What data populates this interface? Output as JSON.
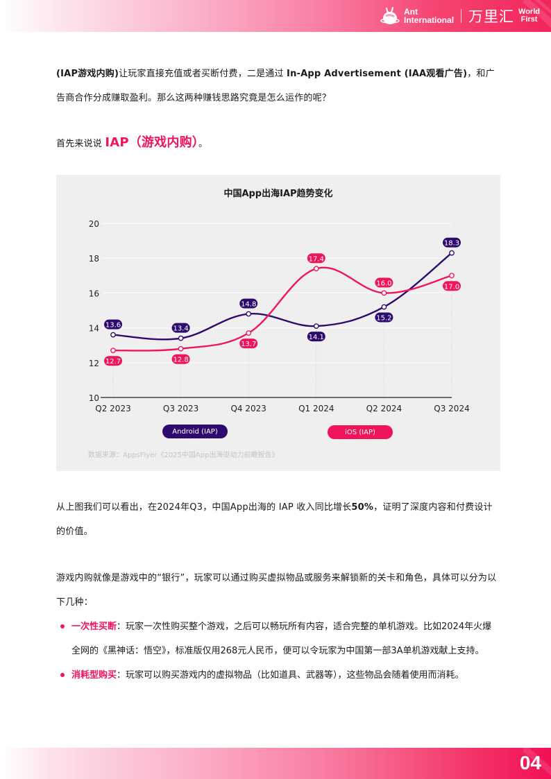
{
  "header": {
    "brand_ant_line1": "Ant",
    "brand_ant_line2": "International",
    "brand_cn": "万里汇",
    "brand_wf_line1": "World",
    "brand_wf_line2": "First",
    "logo_icon": "ant-mascot-icon"
  },
  "paragraphs": {
    "p1_bold_start": "(IAP游戏内购)",
    "p1_text_a": "让玩家直接充值或者买断付费，二是通过 ",
    "p1_bold_mid": "In-App Advertisement (IAA观看广告)",
    "p1_text_b": "，和广告商合作分成赚取盈利。那么这两种赚钱思路究竟是怎么运作的呢？",
    "p2_text": "首先来说说 ",
    "p2_highlight": "IAP（游戏内购）",
    "p2_end": "。",
    "p3_text_a": "从上图我们可以看出，在2024年Q3，中国App出海的 IAP 收入同比增长",
    "p3_bold": "50%",
    "p3_text_b": "，证明了深度内容和付费设计的价值。",
    "p4_text": "游戏内购就像是游戏中的“银行”，玩家可以通过购买虚拟物品或服务来解锁新的关卡和角色，具体可以分为以下几种："
  },
  "bullets": [
    {
      "term": "一次性买断",
      "text": "：玩家一次性购买整个游戏，之后可以畅玩所有内容，适合完整的单机游戏。比如2024年火爆全网的《黑神话：悟空》，标准版仅用268元人民币，便可以令玩家为中国第一部3A单机游戏献上支持。"
    },
    {
      "term": "消耗型购买",
      "text": "：玩家可以购买游戏内的虚拟物品（比如道具、武器等），这些物品会随着使用而消耗。"
    }
  ],
  "chart": {
    "source": "数据来源：AppsFlyer《2025中国App出海驱动力前瞻报告》"
  },
  "chart_data": {
    "type": "line",
    "title": "中国App出海IAP趋势变化",
    "categories": [
      "Q2 2023",
      "Q3 2023",
      "Q4 2023",
      "Q1 2024",
      "Q2 2024",
      "Q3 2024"
    ],
    "series": [
      {
        "name": "Android (IAP)",
        "color": "#2e0a6e",
        "values": [
          13.6,
          13.4,
          14.8,
          14.1,
          15.2,
          18.3
        ]
      },
      {
        "name": "iOS (IAP)",
        "color": "#f0145a",
        "values": [
          12.7,
          12.8,
          13.7,
          17.4,
          16.0,
          17.0
        ]
      }
    ],
    "xlabel": "",
    "ylabel": "",
    "ylim": [
      10,
      20
    ],
    "yticks": [
      10,
      12,
      14,
      16,
      18,
      20
    ],
    "grid": true,
    "legend_position": "bottom"
  },
  "footer": {
    "page_number": "04"
  },
  "colors": {
    "accent_pink": "#f0145a",
    "accent_purple": "#2e0a6e",
    "card_bg": "#efefef"
  }
}
